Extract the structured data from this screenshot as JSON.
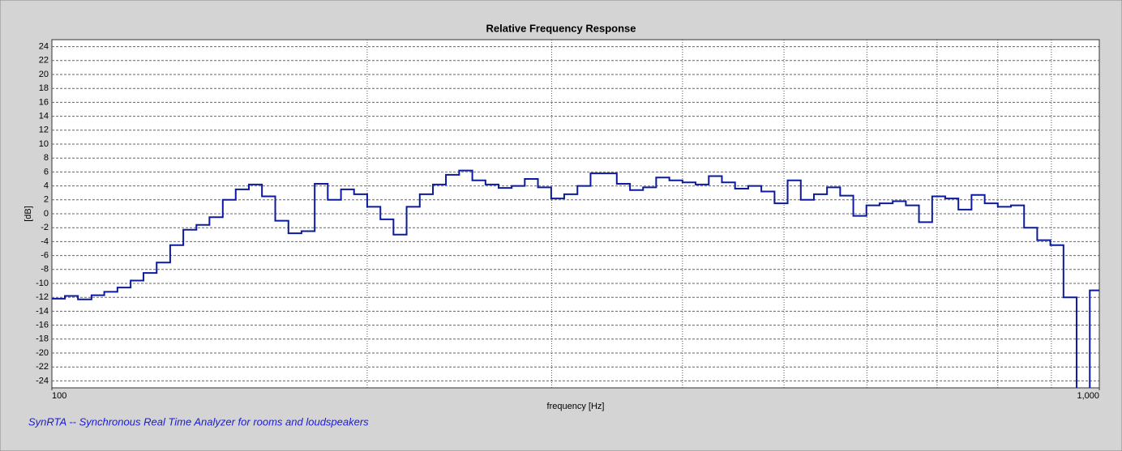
{
  "chart_data": {
    "type": "step-line",
    "title": "Relative Frequency Response",
    "x_label": "frequency [Hz]",
    "y_label": "[dB]",
    "footer": "SynRTA -- Synchronous Real Time Analyzer for rooms and loudspeakers",
    "x_scale": "log",
    "grid": true,
    "xlim": [
      100,
      1000
    ],
    "xticks": [
      100,
      {
        "value": 1000,
        "label": "1,000"
      }
    ],
    "xgrid": [
      200,
      300,
      400,
      500,
      600,
      700,
      800,
      900
    ],
    "ylim": [
      -25,
      25
    ],
    "yticks": [
      -24,
      -22,
      -20,
      -18,
      -16,
      -14,
      -12,
      -10,
      -8,
      -6,
      -4,
      -2,
      0,
      2,
      4,
      6,
      8,
      10,
      12,
      14,
      16,
      18,
      20,
      22,
      24
    ],
    "series": [
      {
        "color": "#0b1a9e",
        "x": [
          100,
          102.9,
          105.9,
          109.1,
          112.2,
          115.5,
          118.9,
          122.3,
          125.9,
          129.7,
          133.5,
          137.4,
          141.4,
          145.6,
          149.8,
          154.2,
          158.7,
          163.4,
          168.2,
          173.1,
          178.2,
          183.4,
          188.8,
          194.3,
          200,
          205.9,
          211.9,
          218.1,
          224.5,
          231.1,
          237.8,
          244.8,
          252,
          259.4,
          267,
          274.8,
          282.8,
          291.1,
          299.7,
          308.4,
          317.5,
          326.8,
          336.4,
          346.2,
          356.4,
          366.8,
          377.5,
          388.6,
          400,
          411.7,
          423.8,
          436.2,
          449,
          462.2,
          475.7,
          489.7,
          504,
          518.8,
          534,
          549.6,
          565.7,
          582.3,
          599.3,
          616.9,
          635,
          653.6,
          672.7,
          692.5,
          712.7,
          733.6,
          755.1,
          777.3,
          800,
          823.5,
          847.6,
          872.4,
          898,
          924.3,
          951.4,
          979.3
        ],
        "values": [
          -12.2,
          -11.8,
          -12.3,
          -11.7,
          -11.2,
          -10.6,
          -9.6,
          -8.5,
          -7,
          -4.5,
          -2.3,
          -1.6,
          -0.5,
          2,
          3.5,
          4.2,
          2.5,
          -1,
          -2.8,
          -2.5,
          4.3,
          2,
          3.5,
          2.8,
          1,
          -0.8,
          -3,
          1,
          2.8,
          4.2,
          5.6,
          6.2,
          4.8,
          4.2,
          3.7,
          4,
          5,
          3.8,
          2.2,
          2.8,
          4,
          5.8,
          5.8,
          4.3,
          3.4,
          3.8,
          5.2,
          4.8,
          4.5,
          4.2,
          5.4,
          4.5,
          3.6,
          4,
          3.2,
          1.5,
          4.8,
          2,
          2.8,
          3.8,
          2.6,
          -0.3,
          1.2,
          1.5,
          1.8,
          1.2,
          -1.2,
          2.5,
          2.2,
          0.6,
          2.7,
          1.5,
          1,
          1.2,
          -2,
          -3.8,
          -4.5,
          -12,
          -27,
          -11
        ]
      }
    ]
  }
}
